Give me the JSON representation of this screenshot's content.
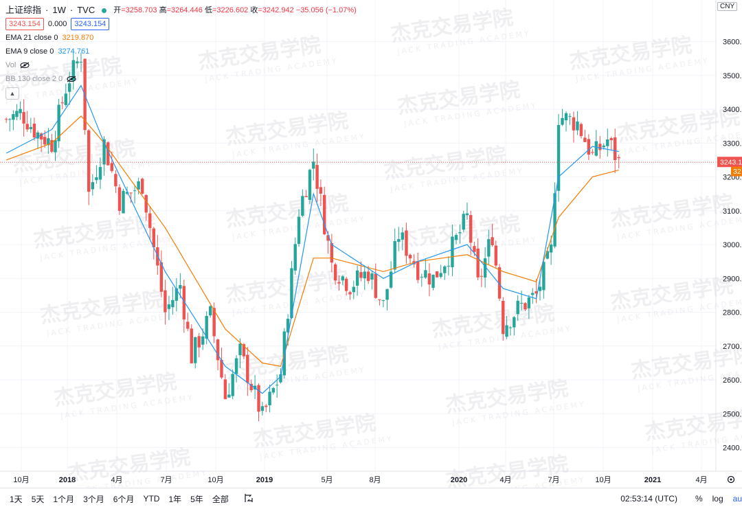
{
  "header": {
    "symbol": "上证综指",
    "interval": "1W",
    "source": "TVC",
    "sep": "·",
    "live_color": "#26a69a",
    "ohlc": {
      "open_label": "开",
      "open": "3258.703",
      "high_label": "高",
      "high": "3264.446",
      "low_label": "低",
      "low": "3226.602",
      "close_label": "收",
      "close": "3242.942",
      "change": "−35.056 (−1.07%)"
    },
    "bid": "3243.154",
    "spread": "0.000",
    "ask": "3243.154"
  },
  "indicators": [
    {
      "name": "EMA 21 close 0",
      "value": "3219.870",
      "color": "#f57c00"
    },
    {
      "name": "EMA 9 close 0",
      "value": "3274.761",
      "color": "#2196f3"
    },
    {
      "name": "Vol",
      "value": "",
      "hidden": true
    },
    {
      "name": "BB 130 close 2 0",
      "value": "",
      "hidden": true
    }
  ],
  "watermark": {
    "cn": "杰克交易学院",
    "en": "JACK TRADING ACADEMY"
  },
  "price_axis": {
    "currency": "CNY",
    "ticks": [
      "2400.000",
      "2500.000",
      "2600.000",
      "2700.000",
      "2800.000",
      "2900.000",
      "3000.000",
      "3100.000",
      "3200.000",
      "3300.000",
      "3400.000",
      "3500.000",
      "3600.000"
    ],
    "last_price_tag": "3243.154",
    "ema_tag": "32"
  },
  "time_axis": {
    "labels": [
      "10月",
      "2018",
      "4月",
      "7月",
      "10月",
      "2019",
      "5月",
      "8月",
      "2020",
      "4月",
      "7月",
      "10月",
      "2021",
      "4月"
    ]
  },
  "bottom_bar": {
    "ranges": [
      "1天",
      "5天",
      "1个月",
      "3个月",
      "6个月",
      "YTD",
      "1年",
      "5年",
      "全部"
    ],
    "compare_icon": "compare-icon",
    "time": "02:53:14 (UTC)",
    "percent": "%",
    "log": "log",
    "auto": "au"
  },
  "colors": {
    "up": "#26a69a",
    "down": "#ef5350",
    "ema21": "#f57c00",
    "ema9": "#2196f3",
    "grid": "#f0f3fa",
    "price_line": "#ef5350"
  },
  "chart_data": {
    "type": "candlestick",
    "title": "上证综指 · 1W · TVC",
    "ylim": [
      2330,
      3700
    ],
    "x_ticks": [
      {
        "label": "10月",
        "date": "2017-10"
      },
      {
        "label": "2018",
        "date": "2018-01"
      },
      {
        "label": "4月",
        "date": "2018-04"
      },
      {
        "label": "7月",
        "date": "2018-07"
      },
      {
        "label": "10月",
        "date": "2018-10"
      },
      {
        "label": "2019",
        "date": "2019-01"
      },
      {
        "label": "5月",
        "date": "2019-05"
      },
      {
        "label": "8月",
        "date": "2019-08"
      },
      {
        "label": "2020",
        "date": "2020-01"
      },
      {
        "label": "4月",
        "date": "2020-04"
      },
      {
        "label": "7月",
        "date": "2020-07"
      },
      {
        "label": "10月",
        "date": "2020-10"
      },
      {
        "label": "2021",
        "date": "2021-01"
      },
      {
        "label": "4月",
        "date": "2021-04"
      }
    ],
    "close_path": [
      [
        "2017-09-01",
        3370
      ],
      [
        "2017-10-01",
        3390
      ],
      [
        "2017-11-01",
        3330
      ],
      [
        "2017-12-01",
        3300
      ],
      [
        "2018-01-01",
        3480
      ],
      [
        "2018-01-26",
        3560
      ],
      [
        "2018-02-09",
        3150
      ],
      [
        "2018-03-09",
        3300
      ],
      [
        "2018-04-06",
        3130
      ],
      [
        "2018-05-18",
        3180
      ],
      [
        "2018-06-29",
        2800
      ],
      [
        "2018-07-27",
        2880
      ],
      [
        "2018-08-17",
        2670
      ],
      [
        "2018-09-21",
        2790
      ],
      [
        "2018-10-19",
        2550
      ],
      [
        "2018-11-16",
        2680
      ],
      [
        "2018-12-28",
        2490
      ],
      [
        "2019-02-01",
        2620
      ],
      [
        "2019-03-08",
        3100
      ],
      [
        "2019-04-05",
        3250
      ],
      [
        "2019-05-10",
        2940
      ],
      [
        "2019-06-14",
        2880
      ],
      [
        "2019-07-19",
        2920
      ],
      [
        "2019-08-16",
        2820
      ],
      [
        "2019-09-13",
        3030
      ],
      [
        "2019-10-18",
        2930
      ],
      [
        "2019-11-15",
        2900
      ],
      [
        "2019-12-13",
        2970
      ],
      [
        "2020-01-17",
        3080
      ],
      [
        "2020-02-07",
        2880
      ],
      [
        "2020-03-06",
        3030
      ],
      [
        "2020-03-27",
        2760
      ],
      [
        "2020-04-24",
        2810
      ],
      [
        "2020-05-29",
        2850
      ],
      [
        "2020-06-26",
        2980
      ],
      [
        "2020-07-10",
        3380
      ],
      [
        "2020-08-14",
        3360
      ],
      [
        "2020-09-11",
        3260
      ],
      [
        "2020-10-09",
        3310
      ],
      [
        "2020-10-30",
        3243
      ]
    ],
    "ema9_path": [
      [
        "2017-09-01",
        3270
      ],
      [
        "2017-12-01",
        3340
      ],
      [
        "2018-01-26",
        3470
      ],
      [
        "2018-03-09",
        3300
      ],
      [
        "2018-06-29",
        2920
      ],
      [
        "2018-10-19",
        2640
      ],
      [
        "2018-12-28",
        2560
      ],
      [
        "2019-02-01",
        2610
      ],
      [
        "2019-04-05",
        3150
      ],
      [
        "2019-05-10",
        3000
      ],
      [
        "2019-08-16",
        2900
      ],
      [
        "2019-10-18",
        2950
      ],
      [
        "2020-01-17",
        3000
      ],
      [
        "2020-03-27",
        2870
      ],
      [
        "2020-05-29",
        2840
      ],
      [
        "2020-07-10",
        3200
      ],
      [
        "2020-09-11",
        3290
      ],
      [
        "2020-10-30",
        3275
      ]
    ],
    "ema21_path": [
      [
        "2017-09-01",
        3250
      ],
      [
        "2017-12-01",
        3300
      ],
      [
        "2018-01-26",
        3380
      ],
      [
        "2018-03-09",
        3300
      ],
      [
        "2018-06-29",
        3050
      ],
      [
        "2018-10-19",
        2750
      ],
      [
        "2018-12-28",
        2650
      ],
      [
        "2019-02-01",
        2640
      ],
      [
        "2019-04-05",
        2960
      ],
      [
        "2019-05-10",
        2960
      ],
      [
        "2019-08-16",
        2920
      ],
      [
        "2019-10-18",
        2950
      ],
      [
        "2020-01-17",
        2970
      ],
      [
        "2020-03-27",
        2920
      ],
      [
        "2020-05-29",
        2890
      ],
      [
        "2020-07-10",
        3080
      ],
      [
        "2020-09-11",
        3200
      ],
      [
        "2020-10-30",
        3220
      ]
    ],
    "last_price": 3243.154,
    "series": [
      {
        "name": "EMA 21 close 0",
        "color": "#f57c00"
      },
      {
        "name": "EMA 9 close 0",
        "color": "#2196f3"
      }
    ]
  }
}
